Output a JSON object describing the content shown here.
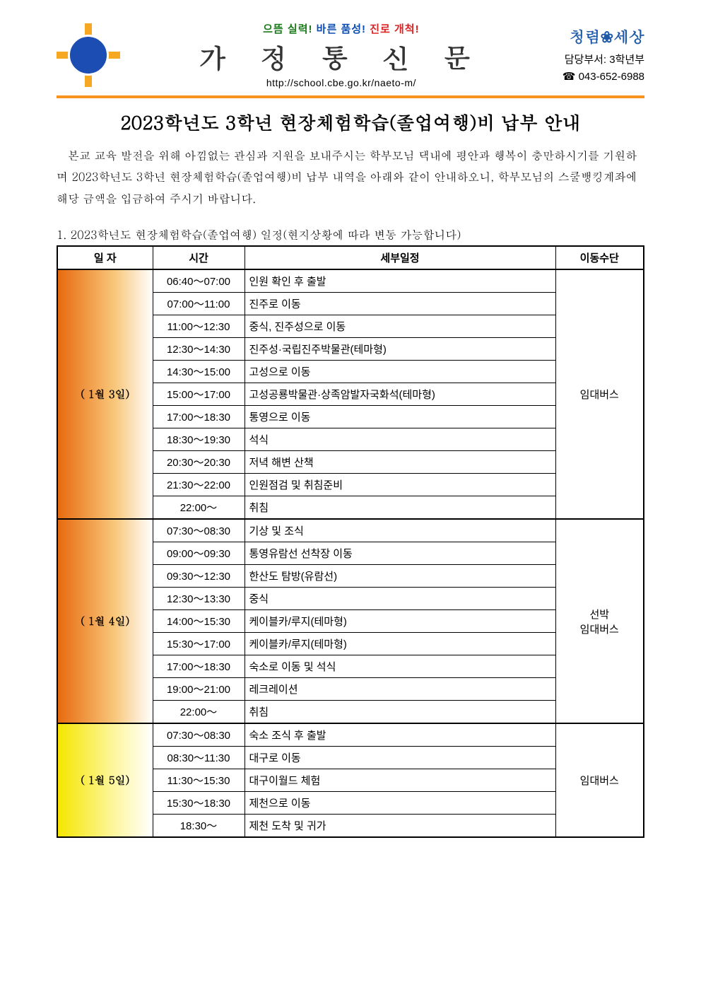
{
  "header": {
    "motto1": "으뜸 실력!",
    "motto2": "바른 품성!",
    "motto3": "진로 개척!",
    "doc_title": "가 정 통 신 문",
    "url": "http://school.cbe.go.kr/naeto-m/",
    "brand": "청렴❀세상",
    "dept": "담당부서: 3학년부",
    "phone": "☎ 043-652-6988"
  },
  "main_title": "2023학년도 3학년 현장체험학습(졸업여행)비 납부 안내",
  "intro": "본교 교육 발전을 위해 아낌없는 관심과 지원을 보내주시는 학부모님 댁내에 평안과 행복이 충만하시기를 기원하며 2023학년도 3학년 현장체험학습(졸업여행)비 납부 내역을 아래와 같이 안내하오니, 학부모님의 스쿨뱅킹계좌에 해당 금액을 입금하여 주시기 바랍니다.",
  "section1_label": "1. 2023학년도 현장체험학습(졸업여행) 일정(현지상황에 따라 변동 가능합니다)",
  "table": {
    "headers": {
      "date": "일    자",
      "time": "시간",
      "detail": "세부일정",
      "transport": "이동수단"
    },
    "days": [
      {
        "date": "( 1월 3일)",
        "transport": "임대버스",
        "gradient": "g1",
        "rows": [
          {
            "time": "06:40～07:00",
            "detail": "인원 확인 후 출발"
          },
          {
            "time": "07:00～11:00",
            "detail": "진주로 이동"
          },
          {
            "time": "11:00～12:30",
            "detail": "중식, 진주성으로 이동"
          },
          {
            "time": "12:30～14:30",
            "detail": "진주성·국립진주박물관(테마형)"
          },
          {
            "time": "14:30～15:00",
            "detail": "고성으로 이동"
          },
          {
            "time": "15:00～17:00",
            "detail": "고성공룡박물관·상족암발자국화석(테마형)"
          },
          {
            "time": "17:00～18:30",
            "detail": "통영으로 이동"
          },
          {
            "time": "18:30～19:30",
            "detail": "석식"
          },
          {
            "time": "20:30～20:30",
            "detail": "저녁 해변 산책"
          },
          {
            "time": "21:30～22:00",
            "detail": "인원점검 및 취침준비"
          },
          {
            "time": "22:00～",
            "detail": "취침"
          }
        ]
      },
      {
        "date": "( 1월 4일)",
        "transport": "선박\n임대버스",
        "gradient": "g2",
        "rows": [
          {
            "time": "07:30～08:30",
            "detail": "기상 및 조식"
          },
          {
            "time": "09:00～09:30",
            "detail": "통영유람선 선착장 이동"
          },
          {
            "time": "09:30～12:30",
            "detail": "한산도 탐방(유람선)"
          },
          {
            "time": "12:30～13:30",
            "detail": "중식"
          },
          {
            "time": "14:00～15:30",
            "detail": "케이블카/루지(테마형)"
          },
          {
            "time": "15:30～17:00",
            "detail": "케이블카/루지(테마형)"
          },
          {
            "time": "17:00～18:30",
            "detail": "숙소로 이동 및 석식"
          },
          {
            "time": "19:00～21:00",
            "detail": "레크레이션"
          },
          {
            "time": "22:00～",
            "detail": "취침"
          }
        ]
      },
      {
        "date": "( 1월 5일)",
        "transport": "임대버스",
        "gradient": "g3",
        "rows": [
          {
            "time": "07:30～08:30",
            "detail": "숙소 조식 후 출발"
          },
          {
            "time": "08:30～11:30",
            "detail": "대구로 이동"
          },
          {
            "time": "11:30～15:30",
            "detail": "대구이월드 체험"
          },
          {
            "time": "15:30～18:30",
            "detail": "제천으로 이동"
          },
          {
            "time": "18:30～",
            "detail": "제천 도착 및 귀가"
          }
        ]
      }
    ]
  },
  "colors": {
    "accent_orange": "#f7931e",
    "motto_green": "#1a7a1a",
    "motto_blue": "#0b4db3",
    "motto_red": "#d92525",
    "brand_blue": "#1e5aa8"
  }
}
